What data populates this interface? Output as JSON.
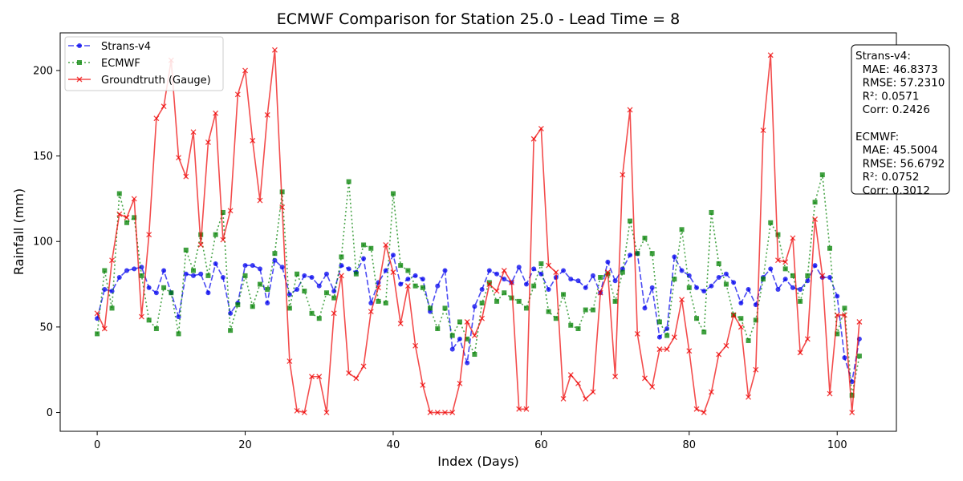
{
  "chart_data": {
    "type": "line",
    "title": "ECMWF Comparison for Station 25.0 - Lead Time = 8",
    "xlabel": "Index (Days)",
    "ylabel": "Rainfall (mm)",
    "xlim": [
      -5,
      108
    ],
    "ylim": [
      -11,
      222
    ],
    "xticks": [
      0,
      20,
      40,
      60,
      80,
      100
    ],
    "yticks": [
      0,
      50,
      100,
      150,
      200
    ],
    "grid": false,
    "legend_position": "upper-left",
    "x": [
      0,
      1,
      2,
      3,
      4,
      5,
      6,
      7,
      8,
      9,
      10,
      11,
      12,
      13,
      14,
      15,
      16,
      17,
      18,
      19,
      20,
      21,
      22,
      23,
      24,
      25,
      26,
      27,
      28,
      29,
      30,
      31,
      32,
      33,
      34,
      35,
      36,
      37,
      38,
      39,
      40,
      41,
      42,
      43,
      44,
      45,
      46,
      47,
      48,
      49,
      50,
      51,
      52,
      53,
      54,
      55,
      56,
      57,
      58,
      59,
      60,
      61,
      62,
      63,
      64,
      65,
      66,
      67,
      68,
      69,
      70,
      71,
      72,
      73,
      74,
      75,
      76,
      77,
      78,
      79,
      80,
      81,
      82,
      83,
      84,
      85,
      86,
      87,
      88,
      89,
      90,
      91,
      92,
      93,
      94,
      95,
      96,
      97,
      98,
      99,
      100,
      101,
      102,
      103
    ],
    "series": [
      {
        "name": "Strans-v4",
        "color": "#0000ee",
        "style": "dashed",
        "marker": "circle",
        "values": [
          55,
          72,
          71,
          79,
          83,
          84,
          85,
          73,
          70,
          83,
          70,
          56,
          81,
          80,
          81,
          70,
          87,
          79,
          58,
          64,
          86,
          86,
          84,
          64,
          89,
          85,
          69,
          72,
          80,
          79,
          74,
          81,
          71,
          86,
          84,
          82,
          90,
          64,
          76,
          83,
          92,
          75,
          78,
          80,
          78,
          59,
          74,
          83,
          37,
          43,
          29,
          62,
          72,
          83,
          81,
          78,
          76,
          85,
          75,
          84,
          81,
          72,
          79,
          83,
          78,
          77,
          73,
          80,
          70,
          88,
          77,
          84,
          92,
          93,
          61,
          73,
          44,
          49,
          91,
          83,
          80,
          73,
          71,
          74,
          79,
          81,
          76,
          64,
          72,
          63,
          79,
          84,
          72,
          78,
          73,
          72,
          77,
          86,
          79,
          79,
          68,
          32,
          18,
          43
        ]
      },
      {
        "name": "ECMWF",
        "color": "#008000",
        "style": "dotted",
        "marker": "square",
        "values": [
          46,
          83,
          61,
          128,
          111,
          114,
          80,
          54,
          49,
          73,
          70,
          46,
          95,
          83,
          104,
          80,
          104,
          117,
          48,
          63,
          80,
          62,
          75,
          72,
          93,
          129,
          61,
          81,
          71,
          58,
          55,
          70,
          67,
          91,
          135,
          81,
          98,
          96,
          65,
          64,
          128,
          86,
          83,
          74,
          73,
          61,
          49,
          61,
          45,
          53,
          43,
          34,
          64,
          76,
          65,
          70,
          67,
          65,
          61,
          74,
          87,
          59,
          55,
          69,
          51,
          49,
          60,
          60,
          79,
          81,
          65,
          82,
          112,
          93,
          102,
          93,
          53,
          45,
          78,
          107,
          73,
          55,
          47,
          117,
          87,
          75,
          57,
          55,
          42,
          54,
          78,
          111,
          104,
          84,
          80,
          65,
          80,
          123,
          139,
          96,
          46,
          61,
          10,
          33
        ]
      },
      {
        "name": "Groundtruth (Gauge)",
        "color": "#ee0000",
        "style": "solid",
        "marker": "x",
        "values": [
          58,
          49,
          89,
          116,
          114,
          125,
          56,
          104,
          172,
          179,
          206,
          149,
          138,
          164,
          98,
          158,
          175,
          101,
          118,
          186,
          200,
          159,
          124,
          174,
          212,
          120,
          30,
          1,
          0,
          21,
          21,
          0,
          58,
          80,
          23,
          20,
          27,
          59,
          73,
          98,
          82,
          52,
          74,
          39,
          16,
          0,
          0,
          0,
          0,
          17,
          53,
          45,
          55,
          75,
          71,
          83,
          76,
          2,
          2,
          160,
          166,
          86,
          82,
          8,
          22,
          17,
          8,
          12,
          70,
          82,
          21,
          139,
          177,
          46,
          20,
          15,
          37,
          37,
          44,
          66,
          36,
          2,
          0,
          12,
          34,
          39,
          57,
          50,
          9,
          25,
          165,
          209,
          89,
          88,
          102,
          35,
          43,
          113,
          80,
          11,
          57,
          57,
          0,
          53
        ]
      }
    ],
    "stats_box": {
      "lines": [
        "Strans-v4:",
        "  MAE: 46.8373",
        "  RMSE: 57.2310",
        "  R²: 0.0571",
        "  Corr: 0.2426",
        "",
        "ECMWF:",
        "  MAE: 45.5004",
        "  RMSE: 56.6792",
        "  R²: 0.0752",
        "  Corr: 0.3012"
      ]
    }
  }
}
